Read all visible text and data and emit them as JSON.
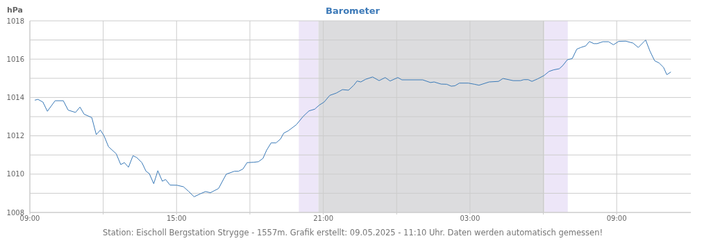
{
  "chart_data": {
    "type": "line",
    "title": "Barometer",
    "ylabel": "hPa",
    "annotations": [
      "Station: Eischoll Bergstation Strygge - 1557m. Grafik erstellt: 09.05.2025 - 11:10 Uhr. Daten werden automatisch gemessen!"
    ],
    "x": [
      "2025-05-08T09:12",
      "2025-05-08T09:20",
      "2025-05-08T09:32",
      "2025-05-08T09:43",
      "2025-05-08T10:02",
      "2025-05-08T10:22",
      "2025-05-08T10:34",
      "2025-05-08T10:52",
      "2025-05-08T11:03",
      "2025-05-08T11:13",
      "2025-05-08T11:32",
      "2025-05-08T11:43",
      "2025-05-08T11:53",
      "2025-05-08T12:02",
      "2025-05-08T12:13",
      "2025-05-08T12:32",
      "2025-05-08T12:43",
      "2025-05-08T12:52",
      "2025-05-08T13:02",
      "2025-05-08T13:13",
      "2025-05-08T13:22",
      "2025-05-08T13:35",
      "2025-05-08T13:45",
      "2025-05-08T13:53",
      "2025-05-08T14:04",
      "2025-05-08T14:14",
      "2025-05-08T14:25",
      "2025-05-08T14:33",
      "2025-05-08T14:44",
      "2025-05-08T15:01",
      "2025-05-08T15:17",
      "2025-05-08T15:29",
      "2025-05-08T15:43",
      "2025-05-08T15:58",
      "2025-05-08T16:11",
      "2025-05-08T16:23",
      "2025-05-08T16:43",
      "2025-05-08T17:02",
      "2025-05-08T17:22",
      "2025-05-08T17:32",
      "2025-05-08T17:43",
      "2025-05-08T17:53",
      "2025-05-08T18:10",
      "2025-05-08T18:21",
      "2025-05-08T18:32",
      "2025-05-08T18:41",
      "2025-05-08T18:52",
      "2025-05-08T19:04",
      "2025-05-08T19:15",
      "2025-05-08T19:23",
      "2025-05-08T19:34",
      "2025-05-08T19:54",
      "2025-05-08T20:11",
      "2025-05-08T20:25",
      "2025-05-08T20:39",
      "2025-05-08T20:50",
      "2025-05-08T21:02",
      "2025-05-08T21:16",
      "2025-05-08T21:32",
      "2025-05-08T21:47",
      "2025-05-08T22:02",
      "2025-05-08T22:15",
      "2025-05-08T22:23",
      "2025-05-08T22:32",
      "2025-05-08T22:44",
      "2025-05-08T23:01",
      "2025-05-08T23:17",
      "2025-05-08T23:32",
      "2025-05-08T23:44",
      "2025-05-09T00:03",
      "2025-05-09T00:13",
      "2025-05-09T01:04",
      "2025-05-09T01:23",
      "2025-05-09T01:32",
      "2025-05-09T01:49",
      "2025-05-09T02:03",
      "2025-05-09T02:14",
      "2025-05-09T02:23",
      "2025-05-09T02:34",
      "2025-05-09T02:56",
      "2025-05-09T03:11",
      "2025-05-09T03:22",
      "2025-05-09T03:47",
      "2025-05-09T04:10",
      "2025-05-09T04:21",
      "2025-05-09T04:46",
      "2025-05-09T05:04",
      "2025-05-09T05:12",
      "2025-05-09T05:23",
      "2025-05-09T05:32",
      "2025-05-09T05:46",
      "2025-05-09T06:02",
      "2025-05-09T06:14",
      "2025-05-09T06:25",
      "2025-05-09T06:39",
      "2025-05-09T06:47",
      "2025-05-09T06:59",
      "2025-05-09T07:11",
      "2025-05-09T07:22",
      "2025-05-09T07:32",
      "2025-05-09T07:44",
      "2025-05-09T07:53",
      "2025-05-09T08:04",
      "2025-05-09T08:12",
      "2025-05-09T08:26",
      "2025-05-09T08:40",
      "2025-05-09T08:52",
      "2025-05-09T09:05",
      "2025-05-09T09:22",
      "2025-05-09T09:40",
      "2025-05-09T09:53",
      "2025-05-09T10:11",
      "2025-05-09T10:22",
      "2025-05-09T10:33",
      "2025-05-09T10:44",
      "2025-05-09T10:55",
      "2025-05-09T11:03",
      "2025-05-09T11:13"
    ],
    "series": [
      {
        "color": "#3a7ab8",
        "values": [
          1013.86,
          1013.9,
          1013.76,
          1013.28,
          1013.83,
          1013.83,
          1013.34,
          1013.22,
          1013.5,
          1013.13,
          1012.95,
          1012.06,
          1012.3,
          1012.0,
          1011.43,
          1011.06,
          1010.5,
          1010.6,
          1010.36,
          1010.96,
          1010.87,
          1010.6,
          1010.15,
          1010.03,
          1009.5,
          1010.18,
          1009.63,
          1009.72,
          1009.43,
          1009.42,
          1009.34,
          1009.11,
          1008.82,
          1008.97,
          1009.09,
          1009.03,
          1009.25,
          1010.0,
          1010.15,
          1010.15,
          1010.27,
          1010.6,
          1010.62,
          1010.65,
          1010.82,
          1011.25,
          1011.63,
          1011.63,
          1011.83,
          1012.14,
          1012.26,
          1012.58,
          1013.02,
          1013.3,
          1013.39,
          1013.6,
          1013.76,
          1014.11,
          1014.23,
          1014.41,
          1014.38,
          1014.64,
          1014.86,
          1014.81,
          1014.95,
          1015.07,
          1014.88,
          1015.04,
          1014.86,
          1015.04,
          1014.92,
          1014.92,
          1014.78,
          1014.81,
          1014.7,
          1014.69,
          1014.59,
          1014.61,
          1014.75,
          1014.75,
          1014.69,
          1014.64,
          1014.81,
          1014.84,
          1014.99,
          1014.88,
          1014.88,
          1014.93,
          1014.93,
          1014.84,
          1014.97,
          1015.15,
          1015.36,
          1015.44,
          1015.5,
          1015.65,
          1015.97,
          1016.03,
          1016.52,
          1016.61,
          1016.69,
          1016.92,
          1016.81,
          1016.81,
          1016.91,
          1016.91,
          1016.75,
          1016.93,
          1016.94,
          1016.84,
          1016.61,
          1017.0,
          1016.4,
          1015.92,
          1015.8,
          1015.57,
          1015.19,
          1015.33
        ]
      }
    ],
    "xlim": [
      "2025-05-08T09:00",
      "2025-05-09T12:02"
    ],
    "xticks": [
      {
        "value": "2025-05-08T09:00",
        "label": "09:00"
      },
      {
        "value": "2025-05-08T12:00",
        "label": null
      },
      {
        "value": "2025-05-08T15:00",
        "label": "15:00"
      },
      {
        "value": "2025-05-08T18:00",
        "label": null
      },
      {
        "value": "2025-05-08T21:00",
        "label": "21:00"
      },
      {
        "value": "2025-05-09T00:00",
        "label": null
      },
      {
        "value": "2025-05-09T03:00",
        "label": "03:00"
      },
      {
        "value": "2025-05-09T06:00",
        "label": null
      },
      {
        "value": "2025-05-09T09:00",
        "label": "09:00"
      }
    ],
    "ylim": [
      1008,
      1018
    ],
    "yticks": [
      1008,
      {
        "value": 1009,
        "label": null
      },
      1010,
      {
        "value": 1011,
        "label": null
      },
      1012,
      {
        "value": 1013,
        "label": null
      },
      1014,
      {
        "value": 1015,
        "label": null
      },
      1016,
      {
        "value": 1017,
        "label": null
      },
      1018
    ],
    "bands": [
      {
        "axis": "x",
        "from": "2025-05-08T20:00",
        "to": "2025-05-08T20:48",
        "color": "#ede6f8"
      },
      {
        "axis": "x",
        "from": "2025-05-08T20:48",
        "to": "2025-05-09T06:03",
        "color": "#dcdcde"
      },
      {
        "axis": "x",
        "from": "2025-05-09T06:03",
        "to": "2025-05-09T07:00",
        "color": "#ede6f8"
      }
    ],
    "grid": true,
    "legend": false,
    "marker": "none",
    "line_style": "solid"
  }
}
